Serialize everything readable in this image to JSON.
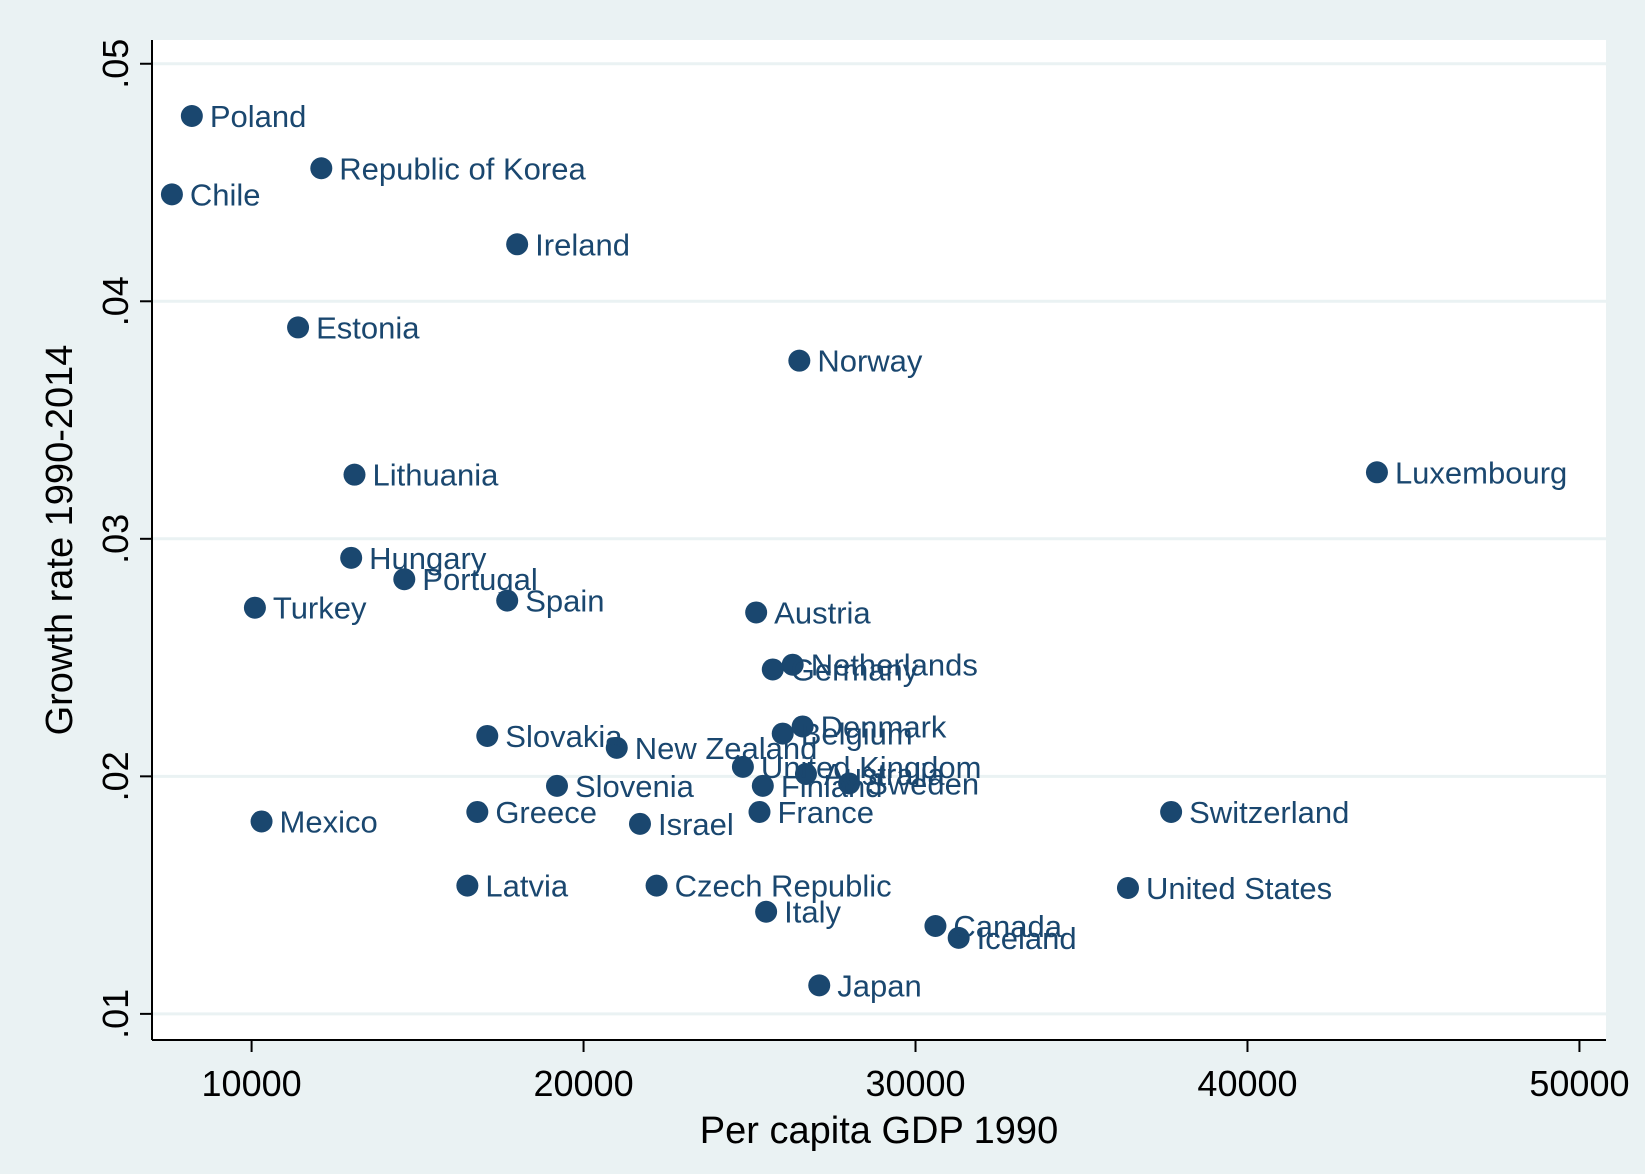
{
  "chart_data": {
    "type": "scatter",
    "title": "",
    "xlabel": "Per capita GDP 1990",
    "ylabel": "Growth rate 1990-2014",
    "xlim": [
      7000,
      50800
    ],
    "ylim": [
      0.0089,
      0.051
    ],
    "x_ticks": [
      {
        "value": 10000,
        "label": "10000"
      },
      {
        "value": 20000,
        "label": "20000"
      },
      {
        "value": 30000,
        "label": "30000"
      },
      {
        "value": 40000,
        "label": "40000"
      },
      {
        "value": 50000,
        "label": "50000"
      }
    ],
    "y_ticks": [
      {
        "value": 0.01,
        "label": ".01"
      },
      {
        "value": 0.02,
        "label": ".02"
      },
      {
        "value": 0.03,
        "label": ".03"
      },
      {
        "value": 0.04,
        "label": ".04"
      },
      {
        "value": 0.05,
        "label": ".05"
      }
    ],
    "grid": "horizontal",
    "marker_color": "#1a476f",
    "background_color": "#eaf2f3",
    "plot_background_color": "#ffffff",
    "points": [
      {
        "label": "Poland",
        "x": 8200,
        "y": 0.0478
      },
      {
        "label": "Republic of Korea",
        "x": 12100,
        "y": 0.0456
      },
      {
        "label": "Chile",
        "x": 7600,
        "y": 0.0445
      },
      {
        "label": "Ireland",
        "x": 18000,
        "y": 0.0424
      },
      {
        "label": "Estonia",
        "x": 11400,
        "y": 0.0389
      },
      {
        "label": "Norway",
        "x": 26500,
        "y": 0.0375
      },
      {
        "label": "Lithuania",
        "x": 13100,
        "y": 0.0327
      },
      {
        "label": "Luxembourg",
        "x": 43900,
        "y": 0.0328
      },
      {
        "label": "Hungary",
        "x": 13000,
        "y": 0.0292
      },
      {
        "label": "Portugal",
        "x": 14600,
        "y": 0.0283
      },
      {
        "label": "Turkey",
        "x": 10100,
        "y": 0.0271
      },
      {
        "label": "Spain",
        "x": 17700,
        "y": 0.0274
      },
      {
        "label": "Austria",
        "x": 25200,
        "y": 0.0269
      },
      {
        "label": "Netherlands",
        "x": 26300,
        "y": 0.0247
      },
      {
        "label": "Germany",
        "x": 25700,
        "y": 0.0245
      },
      {
        "label": "Denmark",
        "x": 26600,
        "y": 0.0221
      },
      {
        "label": "Belgium",
        "x": 26000,
        "y": 0.0218
      },
      {
        "label": "Slovakia",
        "x": 17100,
        "y": 0.0217
      },
      {
        "label": "New Zealand",
        "x": 21000,
        "y": 0.0212
      },
      {
        "label": "United Kingdom",
        "x": 24800,
        "y": 0.0204
      },
      {
        "label": "Australia",
        "x": 26700,
        "y": 0.0201
      },
      {
        "label": "Sweden",
        "x": 28000,
        "y": 0.0197
      },
      {
        "label": "Finland",
        "x": 25400,
        "y": 0.0196
      },
      {
        "label": "Slovenia",
        "x": 19200,
        "y": 0.0196
      },
      {
        "label": "Switzerland",
        "x": 37700,
        "y": 0.0185
      },
      {
        "label": "France",
        "x": 25300,
        "y": 0.0185
      },
      {
        "label": "Greece",
        "x": 16800,
        "y": 0.0185
      },
      {
        "label": "Mexico",
        "x": 10300,
        "y": 0.0181
      },
      {
        "label": "Israel",
        "x": 21700,
        "y": 0.018
      },
      {
        "label": "Latvia",
        "x": 16500,
        "y": 0.0154
      },
      {
        "label": "Czech Republic",
        "x": 22200,
        "y": 0.0154
      },
      {
        "label": "United States",
        "x": 36400,
        "y": 0.0153
      },
      {
        "label": "Italy",
        "x": 25500,
        "y": 0.0143
      },
      {
        "label": "Canada",
        "x": 30600,
        "y": 0.0137
      },
      {
        "label": "Iceland",
        "x": 31300,
        "y": 0.0132
      },
      {
        "label": "Japan",
        "x": 27100,
        "y": 0.0112
      }
    ]
  }
}
